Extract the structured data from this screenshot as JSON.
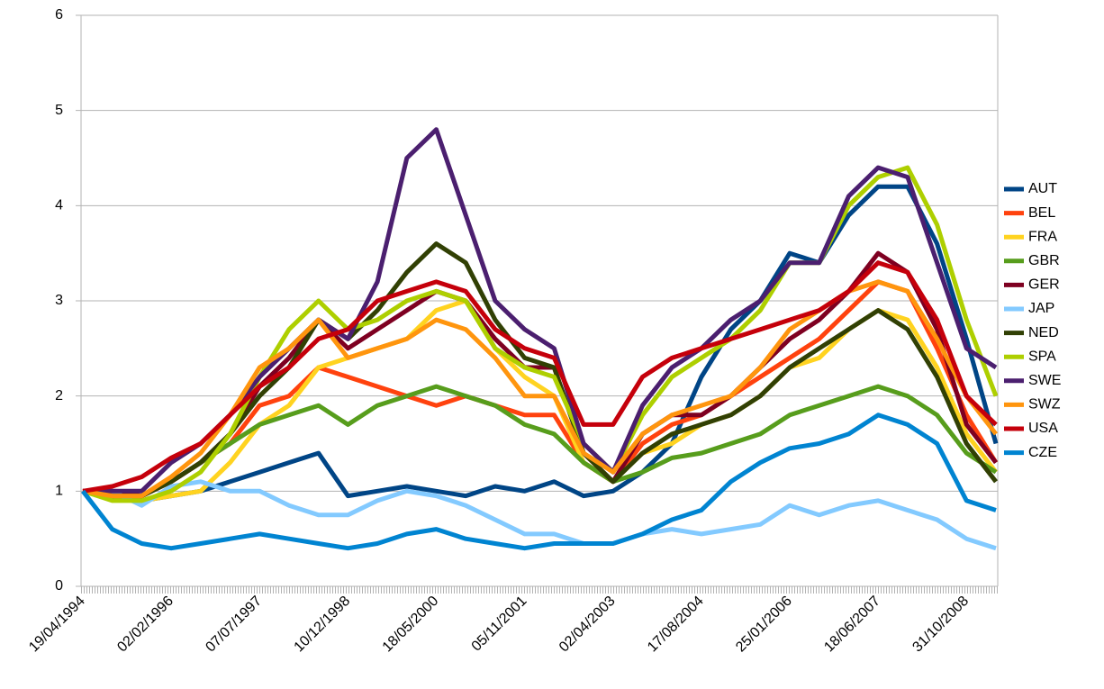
{
  "chart_data": {
    "type": "line",
    "categories": [
      "19/04/1994",
      null,
      null,
      "02/02/1996",
      null,
      null,
      "07/07/1997",
      null,
      null,
      "10/12/1998",
      null,
      null,
      "18/05/2000",
      null,
      null,
      "05/11/2001",
      null,
      null,
      "02/04/2003",
      null,
      null,
      "17/08/2004",
      null,
      null,
      "25/01/2006",
      null,
      null,
      "18/06/2007",
      null,
      null,
      "31/10/2008",
      null
    ],
    "ylim": [
      0,
      6
    ],
    "yticks": [
      0,
      1,
      2,
      3,
      4,
      5,
      6
    ],
    "grid": true,
    "legend": "right",
    "series": [
      {
        "name": "AUT",
        "color": "#004586",
        "values": [
          1,
          0.95,
          0.9,
          0.95,
          1.0,
          1.1,
          1.2,
          1.3,
          1.4,
          0.95,
          1.0,
          1.05,
          1.0,
          0.95,
          1.05,
          1.0,
          1.1,
          0.95,
          1.0,
          1.2,
          1.5,
          2.2,
          2.7,
          3.0,
          3.5,
          3.4,
          3.9,
          4.2,
          4.2,
          3.6,
          2.6,
          1.5
        ]
      },
      {
        "name": "BEL",
        "color": "#ff420e",
        "values": [
          1,
          0.95,
          0.95,
          1.1,
          1.3,
          1.5,
          1.9,
          2.0,
          2.3,
          2.2,
          2.1,
          2.0,
          1.9,
          2.0,
          1.9,
          1.8,
          1.8,
          1.3,
          1.1,
          1.5,
          1.7,
          1.8,
          2.0,
          2.2,
          2.4,
          2.6,
          2.9,
          3.2,
          3.1,
          2.5,
          1.8,
          1.3
        ]
      },
      {
        "name": "FRA",
        "color": "#ffd320",
        "values": [
          1,
          0.95,
          0.9,
          0.95,
          1.0,
          1.3,
          1.7,
          1.9,
          2.3,
          2.4,
          2.5,
          2.6,
          2.9,
          3.0,
          2.5,
          2.2,
          2.0,
          1.3,
          1.1,
          1.4,
          1.5,
          1.7,
          1.8,
          2.0,
          2.3,
          2.4,
          2.7,
          2.9,
          2.8,
          2.3,
          1.6,
          1.2
        ]
      },
      {
        "name": "GBR",
        "color": "#579d1c",
        "values": [
          1,
          0.95,
          0.95,
          1.1,
          1.3,
          1.5,
          1.7,
          1.8,
          1.9,
          1.7,
          1.9,
          2.0,
          2.1,
          2.0,
          1.9,
          1.7,
          1.6,
          1.3,
          1.1,
          1.2,
          1.35,
          1.4,
          1.5,
          1.6,
          1.8,
          1.9,
          2.0,
          2.1,
          2.0,
          1.8,
          1.4,
          1.2
        ]
      },
      {
        "name": "GER",
        "color": "#7e0021",
        "values": [
          1,
          1.0,
          0.95,
          1.1,
          1.3,
          1.6,
          2.1,
          2.4,
          2.8,
          2.5,
          2.7,
          2.9,
          3.1,
          3.0,
          2.6,
          2.3,
          2.3,
          1.4,
          1.1,
          1.6,
          1.8,
          1.8,
          2.0,
          2.3,
          2.6,
          2.8,
          3.1,
          3.5,
          3.3,
          2.7,
          1.7,
          1.3
        ]
      },
      {
        "name": "JAP",
        "color": "#83caff",
        "values": [
          1,
          1.0,
          0.85,
          1.05,
          1.1,
          1.0,
          1.0,
          0.85,
          0.75,
          0.75,
          0.9,
          1.0,
          0.95,
          0.85,
          0.7,
          0.55,
          0.55,
          0.45,
          0.45,
          0.55,
          0.6,
          0.55,
          0.6,
          0.65,
          0.85,
          0.75,
          0.85,
          0.9,
          0.8,
          0.7,
          0.5,
          0.4
        ]
      },
      {
        "name": "NED",
        "color": "#314004",
        "values": [
          1,
          0.95,
          0.95,
          1.1,
          1.3,
          1.6,
          2.0,
          2.3,
          2.8,
          2.6,
          2.9,
          3.3,
          3.6,
          3.4,
          2.8,
          2.4,
          2.3,
          1.4,
          1.1,
          1.4,
          1.6,
          1.7,
          1.8,
          2.0,
          2.3,
          2.5,
          2.7,
          2.9,
          2.7,
          2.2,
          1.5,
          1.1
        ]
      },
      {
        "name": "SPA",
        "color": "#aecf00",
        "values": [
          1,
          0.9,
          0.9,
          1.0,
          1.2,
          1.6,
          2.2,
          2.7,
          3.0,
          2.7,
          2.8,
          3.0,
          3.1,
          3.0,
          2.5,
          2.3,
          2.2,
          1.5,
          1.2,
          1.8,
          2.2,
          2.4,
          2.6,
          2.9,
          3.4,
          3.4,
          4.0,
          4.3,
          4.4,
          3.8,
          2.8,
          2.0
        ]
      },
      {
        "name": "SWE",
        "color": "#4b1f6f",
        "values": [
          1,
          1.0,
          1.0,
          1.3,
          1.5,
          1.8,
          2.2,
          2.5,
          2.8,
          2.6,
          3.2,
          4.5,
          4.8,
          3.9,
          3.0,
          2.7,
          2.5,
          1.5,
          1.2,
          1.9,
          2.3,
          2.5,
          2.8,
          3.0,
          3.4,
          3.4,
          4.1,
          4.4,
          4.3,
          3.4,
          2.5,
          2.3
        ]
      },
      {
        "name": "SWZ",
        "color": "#ff950e",
        "values": [
          1,
          0.95,
          0.95,
          1.15,
          1.4,
          1.8,
          2.3,
          2.5,
          2.8,
          2.4,
          2.5,
          2.6,
          2.8,
          2.7,
          2.4,
          2.0,
          2.0,
          1.4,
          1.2,
          1.6,
          1.8,
          1.9,
          2.0,
          2.3,
          2.7,
          2.9,
          3.1,
          3.2,
          3.1,
          2.6,
          2.0,
          1.6
        ]
      },
      {
        "name": "USA",
        "color": "#c5000b",
        "values": [
          1,
          1.05,
          1.15,
          1.35,
          1.5,
          1.8,
          2.1,
          2.3,
          2.6,
          2.7,
          3.0,
          3.1,
          3.2,
          3.1,
          2.7,
          2.5,
          2.4,
          1.7,
          1.7,
          2.2,
          2.4,
          2.5,
          2.6,
          2.7,
          2.8,
          2.9,
          3.1,
          3.4,
          3.3,
          2.8,
          2.0,
          1.7
        ]
      },
      {
        "name": "CZE",
        "color": "#0084d1",
        "values": [
          1,
          0.6,
          0.45,
          0.4,
          0.45,
          0.5,
          0.55,
          0.5,
          0.45,
          0.4,
          0.45,
          0.55,
          0.6,
          0.5,
          0.45,
          0.4,
          0.45,
          0.45,
          0.45,
          0.55,
          0.7,
          0.8,
          1.1,
          1.3,
          1.45,
          1.5,
          1.6,
          1.8,
          1.7,
          1.5,
          0.9,
          0.8
        ]
      }
    ]
  }
}
